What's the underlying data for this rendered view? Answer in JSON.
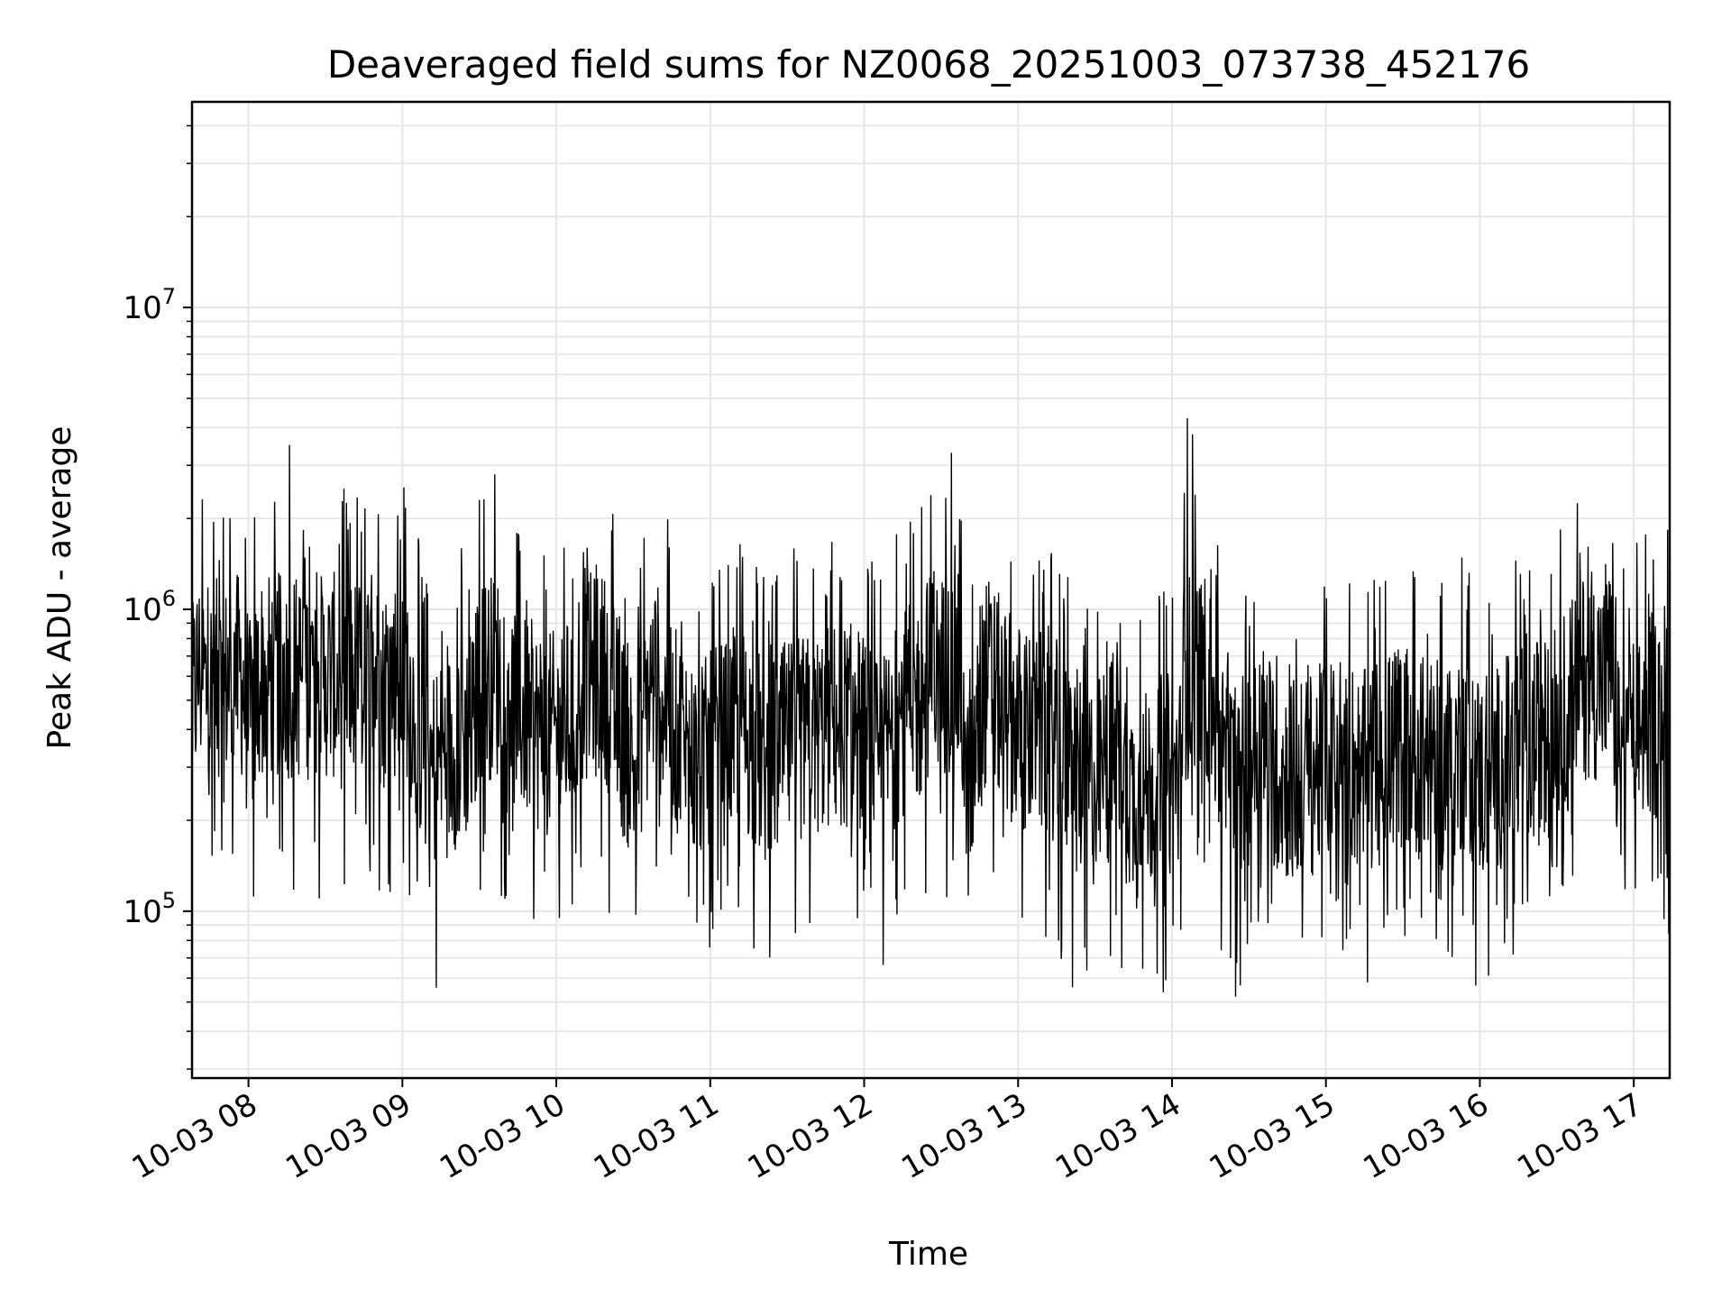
{
  "chart_data": {
    "type": "line",
    "title": "Deaveraged field sums for NZ0068_20251003_073738_452176",
    "xlabel": "Time",
    "ylabel": "Peak ADU - average",
    "yscale": "log",
    "ylim": [
      28000,
      48000000
    ],
    "xlim": [
      "10-03 07:38",
      "10-03 17:14"
    ],
    "x_tick_labels": [
      "10-03 08",
      "10-03 09",
      "10-03 10",
      "10-03 11",
      "10-03 12",
      "10-03 13",
      "10-03 14",
      "10-03 15",
      "10-03 16",
      "10-03 17"
    ],
    "y_tick_labels": [
      {
        "base": "10",
        "exp": "5"
      },
      {
        "base": "10",
        "exp": "6"
      },
      {
        "base": "10",
        "exp": "7"
      }
    ],
    "y_tick_values": [
      100000,
      1000000,
      10000000
    ],
    "grid": true,
    "line_color": "#000000",
    "series": [
      {
        "x": [
          "10-03 07:38",
          "10-03 07:41",
          "10-03 07:44",
          "10-03 07:47",
          "10-03 07:50",
          "10-03 07:55",
          "10-03 08:00",
          "10-03 08:05",
          "10-03 08:10",
          "10-03 08:16",
          "10-03 08:20",
          "10-03 08:25",
          "10-03 08:30",
          "10-03 08:36",
          "10-03 08:42",
          "10-03 08:48",
          "10-03 08:52",
          "10-03 08:58",
          "10-03 09:05",
          "10-03 09:12",
          "10-03 09:20",
          "10-03 09:28",
          "10-03 09:36",
          "10-03 09:42",
          "10-03 09:50",
          "10-03 09:58",
          "10-03 10:08",
          "10-03 10:12",
          "10-03 10:20",
          "10-03 10:30",
          "10-03 10:38",
          "10-03 10:46",
          "10-03 10:55",
          "10-03 11:04",
          "10-03 11:12",
          "10-03 11:22",
          "10-03 11:30",
          "10-03 11:40",
          "10-03 11:50",
          "10-03 11:58",
          "10-03 12:06",
          "10-03 12:14",
          "10-03 12:22",
          "10-03 12:30",
          "10-03 12:34",
          "10-03 12:40",
          "10-03 12:48",
          "10-03 12:56",
          "10-03 13:04",
          "10-03 13:12",
          "10-03 13:20",
          "10-03 13:30",
          "10-03 13:38",
          "10-03 13:46",
          "10-03 13:54",
          "10-03 14:04",
          "10-03 14:06",
          "10-03 14:08",
          "10-03 14:12",
          "10-03 14:20",
          "10-03 14:26",
          "10-03 14:34",
          "10-03 14:42",
          "10-03 14:50",
          "10-03 14:58",
          "10-03 15:06",
          "10-03 15:14",
          "10-03 15:22",
          "10-03 15:30",
          "10-03 15:38",
          "10-03 15:46",
          "10-03 15:54",
          "10-03 16:02",
          "10-03 16:10",
          "10-03 16:18",
          "10-03 16:26",
          "10-03 16:34",
          "10-03 16:42",
          "10-03 16:50",
          "10-03 16:54",
          "10-03 17:00",
          "10-03 17:06",
          "10-03 17:14"
        ],
        "y": [
          450000,
          700000,
          520000,
          600000,
          480000,
          900000,
          400000,
          600000,
          900000,
          3500000,
          600000,
          650000,
          700000,
          550000,
          800000,
          1300000,
          500000,
          1000000,
          420000,
          300000,
          350000,
          400000,
          2800000,
          500000,
          420000,
          380000,
          450000,
          1600000,
          550000,
          300000,
          600000,
          400000,
          300000,
          350000,
          420000,
          300000,
          360000,
          380000,
          420000,
          400000,
          300000,
          450000,
          500000,
          900000,
          3300000,
          220000,
          600000,
          450000,
          380000,
          400000,
          300000,
          260000,
          350000,
          220000,
          280000,
          280000,
          4300000,
          3800000,
          700000,
          300000,
          260000,
          380000,
          280000,
          270000,
          300000,
          350000,
          280000,
          320000,
          360000,
          320000,
          300000,
          350000,
          260000,
          320000,
          340000,
          380000,
          450000,
          800000,
          1000000,
          300000,
          380000,
          450000,
          420000
        ]
      }
    ]
  }
}
